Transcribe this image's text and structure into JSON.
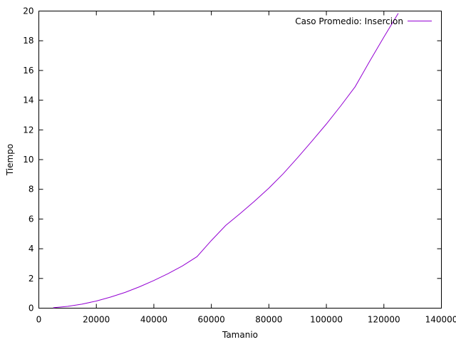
{
  "chart_data": {
    "type": "line",
    "title": "",
    "xlabel": "Tamanio",
    "ylabel": "Tiempo",
    "xlim": [
      0,
      140000
    ],
    "ylim": [
      0,
      20
    ],
    "xticks": [
      0,
      20000,
      40000,
      60000,
      80000,
      100000,
      120000,
      140000
    ],
    "yticks": [
      0,
      2,
      4,
      6,
      8,
      10,
      12,
      14,
      16,
      18,
      20
    ],
    "grid": false,
    "legend_position": "top-right",
    "series": [
      {
        "name": "Caso Promedio: Insercion",
        "color": "#9400d3",
        "x": [
          5000,
          10000,
          15000,
          20000,
          25000,
          30000,
          35000,
          40000,
          45000,
          50000,
          55000,
          60000,
          65000,
          70000,
          75000,
          80000,
          85000,
          90000,
          95000,
          100000,
          105000,
          110000,
          115000,
          120000,
          125000
        ],
        "y": [
          0.03,
          0.12,
          0.27,
          0.48,
          0.75,
          1.06,
          1.44,
          1.86,
          2.33,
          2.85,
          3.47,
          4.55,
          5.57,
          6.37,
          7.2,
          8.08,
          9.05,
          10.13,
          11.25,
          12.4,
          13.62,
          14.9,
          16.6,
          18.25,
          19.85
        ]
      }
    ]
  }
}
